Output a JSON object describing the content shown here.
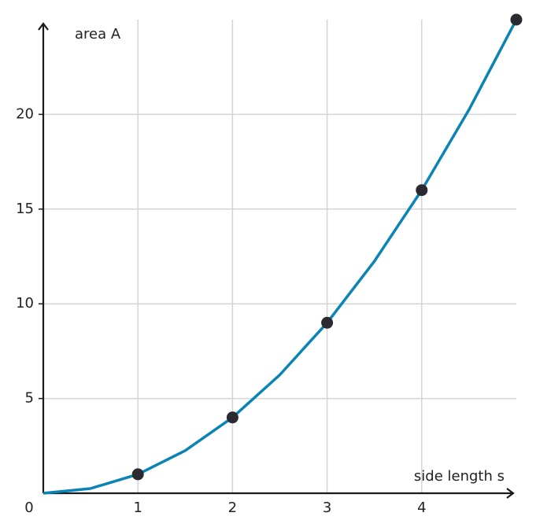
{
  "chart_data": {
    "type": "line",
    "x_label": "side length s",
    "y_label": "area A",
    "xlim": [
      0,
      5
    ],
    "ylim": [
      0,
      25
    ],
    "xticks": [
      0,
      1,
      2,
      3,
      4
    ],
    "yticks": [
      5,
      10,
      15,
      20
    ],
    "grid": true,
    "series": [
      {
        "name": "curve",
        "kind": "line",
        "color": "#0a84b4",
        "x": [
          0,
          0.5,
          1,
          1.5,
          2,
          2.5,
          3,
          3.5,
          4,
          4.5,
          5
        ],
        "values": [
          0,
          0.25,
          1,
          2.25,
          4,
          6.25,
          9,
          12.25,
          16,
          20.25,
          25
        ]
      },
      {
        "name": "points",
        "kind": "points",
        "color": "#2a2a30",
        "x": [
          1,
          2,
          3,
          4,
          5
        ],
        "values": [
          1,
          4,
          9,
          16,
          25
        ]
      }
    ]
  }
}
